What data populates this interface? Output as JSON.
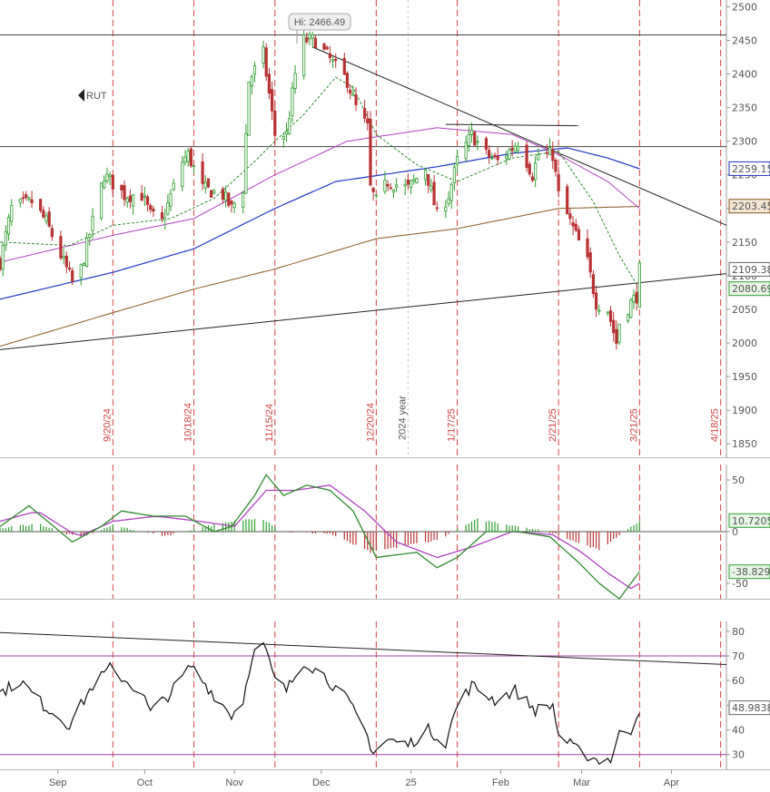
{
  "colors": {
    "up": "#2e9e2e",
    "down": "#b83232",
    "ema_green": "#2d8a2d",
    "sma_magenta": "#b040c0",
    "sma_blue": "#1f36c8",
    "sma_brown": "#8a5a20",
    "event_line": "#d64545",
    "macd": "#2d8a2d",
    "signal": "#b040c0",
    "rsi": "#111111",
    "rsi_band": "#9b3fa0"
  },
  "chart_data": [
    {
      "type": "candlestick",
      "symbol": "RUT",
      "ylim": [
        1830,
        2510
      ],
      "y_ticks": [
        1850,
        1900,
        1950,
        2000,
        2050,
        2100,
        2150,
        2200,
        2250,
        2300,
        2350,
        2400,
        2450,
        2500
      ],
      "high_annotation": "Hi: 2466.49",
      "x_start": "2024-08-12",
      "x_end": "2025-04-20",
      "month_ticks": [
        {
          "label": "Sep",
          "date": "2024-09-01"
        },
        {
          "label": "Oct",
          "date": "2024-10-01"
        },
        {
          "label": "Nov",
          "date": "2024-11-01"
        },
        {
          "label": "Dec",
          "date": "2024-12-01"
        },
        {
          "label": "25",
          "date": "2025-01-01"
        },
        {
          "label": "Feb",
          "date": "2025-02-01"
        },
        {
          "label": "Mar",
          "date": "2025-03-01"
        },
        {
          "label": "Apr",
          "date": "2025-04-01"
        }
      ],
      "event_dates": [
        {
          "label": "9/20/24",
          "date": "2024-09-20"
        },
        {
          "label": "10/18/24",
          "date": "2024-10-18"
        },
        {
          "label": "11/15/24",
          "date": "2024-11-15"
        },
        {
          "label": "12/20/24",
          "date": "2024-12-20"
        },
        {
          "label": "1/17/25",
          "date": "2025-01-17"
        },
        {
          "label": "2/21/25",
          "date": "2025-02-21"
        },
        {
          "label": "3/21/25",
          "date": "2025-03-21"
        },
        {
          "label": "4/18/25",
          "date": "2025-04-18"
        }
      ],
      "year_marker": {
        "label": "2024 year",
        "date": "2024-12-31"
      },
      "horizontal_lines": [
        2458,
        2292
      ],
      "trendlines": [
        {
          "from": {
            "date": "2024-08-12",
            "value": 1990
          },
          "to": {
            "date": "2025-04-20",
            "value": 2103
          }
        },
        {
          "from": {
            "date": "2024-11-28",
            "value": 2440
          },
          "to": {
            "date": "2025-04-20",
            "value": 2175
          }
        },
        {
          "from": {
            "date": "2025-01-13",
            "value": 2325
          },
          "to": {
            "date": "2025-02-28",
            "value": 2323
          }
        }
      ],
      "price_labels": [
        {
          "text": "2259.15",
          "value": 2259.15,
          "style": "blue"
        },
        {
          "text": "2203.45",
          "value": 2203.45,
          "style": "brown"
        },
        {
          "text": "2109.38",
          "value": 2109.38,
          "style": "white"
        },
        {
          "text": "2080.69",
          "value": 2080.69,
          "style": "green"
        }
      ],
      "ohlc_key_points": [
        [
          "2024-08-12",
          2120
        ],
        [
          "2024-08-16",
          2200
        ],
        [
          "2024-08-23",
          2210
        ],
        [
          "2024-08-28",
          2180
        ],
        [
          "2024-09-06",
          2090
        ],
        [
          "2024-09-09",
          2110
        ],
        [
          "2024-09-13",
          2180
        ],
        [
          "2024-09-17",
          2250
        ],
        [
          "2024-09-24",
          2220
        ],
        [
          "2024-09-30",
          2220
        ],
        [
          "2024-10-03",
          2190
        ],
        [
          "2024-10-07",
          2180
        ],
        [
          "2024-10-14",
          2270
        ],
        [
          "2024-10-16",
          2280
        ],
        [
          "2024-10-21",
          2230
        ],
        [
          "2024-10-28",
          2220
        ],
        [
          "2024-10-31",
          2200
        ],
        [
          "2024-11-04",
          2230
        ],
        [
          "2024-11-06",
          2390
        ],
        [
          "2024-11-11",
          2430
        ],
        [
          "2024-11-15",
          2310
        ],
        [
          "2024-11-19",
          2310
        ],
        [
          "2024-11-22",
          2400
        ],
        [
          "2024-11-25",
          2450
        ],
        [
          "2024-11-29",
          2450
        ],
        [
          "2024-12-06",
          2410
        ],
        [
          "2024-12-10",
          2390
        ],
        [
          "2024-12-13",
          2350
        ],
        [
          "2024-12-17",
          2320
        ],
        [
          "2024-12-18",
          2230
        ],
        [
          "2024-12-20",
          2210
        ],
        [
          "2024-12-24",
          2240
        ],
        [
          "2024-12-31",
          2230
        ],
        [
          "2025-01-06",
          2260
        ],
        [
          "2025-01-10",
          2190
        ],
        [
          "2025-01-14",
          2220
        ],
        [
          "2025-01-17",
          2270
        ],
        [
          "2025-01-22",
          2310
        ],
        [
          "2025-01-27",
          2280
        ],
        [
          "2025-01-31",
          2270
        ],
        [
          "2025-02-05",
          2290
        ],
        [
          "2025-02-07",
          2300
        ],
        [
          "2025-02-12",
          2250
        ],
        [
          "2025-02-14",
          2280
        ],
        [
          "2025-02-19",
          2280
        ],
        [
          "2025-02-21",
          2220
        ],
        [
          "2025-02-26",
          2170
        ],
        [
          "2025-03-03",
          2120
        ],
        [
          "2025-03-06",
          2060
        ],
        [
          "2025-03-10",
          2050
        ],
        [
          "2025-03-13",
          2000
        ],
        [
          "2025-03-14",
          2030
        ],
        [
          "2025-03-18",
          2060
        ],
        [
          "2025-03-20",
          2070
        ],
        [
          "2025-03-21",
          2109
        ]
      ],
      "ema_key_points": [
        [
          "2024-08-12",
          2150
        ],
        [
          "2024-09-05",
          2145
        ],
        [
          "2024-09-20",
          2175
        ],
        [
          "2024-10-10",
          2185
        ],
        [
          "2024-10-25",
          2215
        ],
        [
          "2024-11-08",
          2270
        ],
        [
          "2024-11-15",
          2300
        ],
        [
          "2024-11-25",
          2340
        ],
        [
          "2024-12-06",
          2395
        ],
        [
          "2024-12-12",
          2380
        ],
        [
          "2024-12-20",
          2310
        ],
        [
          "2025-01-03",
          2265
        ],
        [
          "2025-01-17",
          2240
        ],
        [
          "2025-02-05",
          2275
        ],
        [
          "2025-02-21",
          2285
        ],
        [
          "2025-03-05",
          2210
        ],
        [
          "2025-03-14",
          2130
        ],
        [
          "2025-03-21",
          2080
        ]
      ],
      "sma_magenta_key_points": [
        [
          "2024-08-12",
          2120
        ],
        [
          "2024-09-20",
          2160
        ],
        [
          "2024-10-18",
          2185
        ],
        [
          "2024-11-15",
          2250
        ],
        [
          "2024-12-10",
          2300
        ],
        [
          "2025-01-10",
          2320
        ],
        [
          "2025-02-05",
          2310
        ],
        [
          "2025-02-21",
          2280
        ],
        [
          "2025-03-10",
          2240
        ],
        [
          "2025-03-21",
          2200
        ]
      ],
      "sma_blue_key_points": [
        [
          "2024-08-12",
          2065
        ],
        [
          "2024-09-20",
          2105
        ],
        [
          "2024-10-18",
          2140
        ],
        [
          "2024-11-15",
          2200
        ],
        [
          "2024-12-06",
          2240
        ],
        [
          "2025-01-10",
          2262
        ],
        [
          "2025-02-05",
          2282
        ],
        [
          "2025-02-24",
          2290
        ],
        [
          "2025-03-10",
          2275
        ],
        [
          "2025-03-21",
          2259
        ]
      ],
      "sma_brown_key_points": [
        [
          "2024-08-12",
          1995
        ],
        [
          "2024-09-20",
          2045
        ],
        [
          "2024-10-18",
          2080
        ],
        [
          "2024-11-15",
          2110
        ],
        [
          "2024-12-20",
          2155
        ],
        [
          "2025-01-17",
          2170
        ],
        [
          "2025-02-21",
          2200
        ],
        [
          "2025-03-21",
          2203
        ]
      ]
    },
    {
      "type": "macd",
      "ylim": [
        -65,
        65
      ],
      "y_ticks": [
        50,
        0,
        -50
      ],
      "labels": [
        {
          "text": "10.7205",
          "value": 10.7205,
          "style": "green"
        },
        {
          "text": "-38.829",
          "value": -38.829,
          "style": "green"
        }
      ],
      "macd_key_points": [
        [
          "2024-08-12",
          5
        ],
        [
          "2024-08-22",
          25
        ],
        [
          "2024-09-06",
          -10
        ],
        [
          "2024-09-16",
          5
        ],
        [
          "2024-09-23",
          20
        ],
        [
          "2024-10-04",
          15
        ],
        [
          "2024-10-15",
          15
        ],
        [
          "2024-10-25",
          0
        ],
        [
          "2024-10-31",
          5
        ],
        [
          "2024-11-08",
          35
        ],
        [
          "2024-11-12",
          55
        ],
        [
          "2024-11-18",
          35
        ],
        [
          "2024-11-26",
          45
        ],
        [
          "2024-12-04",
          40
        ],
        [
          "2024-12-12",
          20
        ],
        [
          "2024-12-20",
          -25
        ],
        [
          "2025-01-03",
          -20
        ],
        [
          "2025-01-10",
          -35
        ],
        [
          "2025-01-17",
          -25
        ],
        [
          "2025-01-27",
          0
        ],
        [
          "2025-02-07",
          0
        ],
        [
          "2025-02-18",
          -5
        ],
        [
          "2025-02-28",
          -30
        ],
        [
          "2025-03-07",
          -50
        ],
        [
          "2025-03-14",
          -65
        ],
        [
          "2025-03-21",
          -38.8
        ]
      ],
      "signal_key_points": [
        [
          "2024-08-12",
          10
        ],
        [
          "2024-08-25",
          20
        ],
        [
          "2024-09-08",
          -5
        ],
        [
          "2024-09-20",
          10
        ],
        [
          "2024-10-05",
          15
        ],
        [
          "2024-10-20",
          10
        ],
        [
          "2024-11-01",
          5
        ],
        [
          "2024-11-12",
          40
        ],
        [
          "2024-11-22",
          40
        ],
        [
          "2024-12-04",
          45
        ],
        [
          "2024-12-16",
          20
        ],
        [
          "2024-12-27",
          -10
        ],
        [
          "2025-01-10",
          -25
        ],
        [
          "2025-01-22",
          -15
        ],
        [
          "2025-02-05",
          0
        ],
        [
          "2025-02-19",
          -3
        ],
        [
          "2025-03-01",
          -20
        ],
        [
          "2025-03-10",
          -40
        ],
        [
          "2025-03-18",
          -55
        ],
        [
          "2025-03-21",
          -50
        ]
      ],
      "histogram_key_points": [
        [
          "2024-08-12",
          3
        ],
        [
          "2024-08-25",
          8
        ],
        [
          "2024-09-08",
          -6
        ],
        [
          "2024-09-20",
          6
        ],
        [
          "2024-10-08",
          -4
        ],
        [
          "2024-10-20",
          4
        ],
        [
          "2024-11-10",
          14
        ],
        [
          "2024-11-18",
          0
        ],
        [
          "2024-12-04",
          -2
        ],
        [
          "2024-12-18",
          -20
        ],
        [
          "2025-01-10",
          -8
        ],
        [
          "2025-01-24",
          12
        ],
        [
          "2025-02-10",
          4
        ],
        [
          "2025-02-20",
          -2
        ],
        [
          "2025-03-07",
          -18
        ],
        [
          "2025-03-18",
          5
        ],
        [
          "2025-03-21",
          10.7
        ]
      ]
    },
    {
      "type": "rsi",
      "ylim": [
        24,
        84
      ],
      "y_ticks": [
        80,
        70,
        60,
        50,
        40,
        30
      ],
      "bands": [
        70,
        30
      ],
      "label": {
        "text": "48.9838",
        "value": 48.9838
      },
      "trendline": {
        "from": {
          "date": "2024-08-12",
          "value": 79.5
        },
        "to": {
          "date": "2025-04-20",
          "value": 66.5
        }
      },
      "rsi_key_points": [
        [
          "2024-08-12",
          55
        ],
        [
          "2024-08-19",
          60
        ],
        [
          "2024-08-27",
          50
        ],
        [
          "2024-09-05",
          42
        ],
        [
          "2024-09-13",
          58
        ],
        [
          "2024-09-19",
          65
        ],
        [
          "2024-09-30",
          55
        ],
        [
          "2024-10-03",
          47
        ],
        [
          "2024-10-10",
          55
        ],
        [
          "2024-10-17",
          66
        ],
        [
          "2024-10-23",
          57
        ],
        [
          "2024-10-31",
          46
        ],
        [
          "2024-11-04",
          52
        ],
        [
          "2024-11-07",
          70
        ],
        [
          "2024-11-11",
          75
        ],
        [
          "2024-11-15",
          60
        ],
        [
          "2024-11-19",
          56
        ],
        [
          "2024-11-25",
          68
        ],
        [
          "2024-12-02",
          62
        ],
        [
          "2024-12-10",
          52
        ],
        [
          "2024-12-16",
          40
        ],
        [
          "2024-12-19",
          31
        ],
        [
          "2024-12-24",
          36
        ],
        [
          "2024-12-31",
          34
        ],
        [
          "2025-01-07",
          40
        ],
        [
          "2025-01-13",
          35
        ],
        [
          "2025-01-17",
          50
        ],
        [
          "2025-01-22",
          58
        ],
        [
          "2025-01-30",
          52
        ],
        [
          "2025-02-06",
          56
        ],
        [
          "2025-02-13",
          48
        ],
        [
          "2025-02-19",
          50
        ],
        [
          "2025-02-21",
          38
        ],
        [
          "2025-02-27",
          32
        ],
        [
          "2025-03-06",
          28
        ],
        [
          "2025-03-11",
          28
        ],
        [
          "2025-03-14",
          38
        ],
        [
          "2025-03-18",
          40
        ],
        [
          "2025-03-21",
          49
        ]
      ]
    }
  ]
}
